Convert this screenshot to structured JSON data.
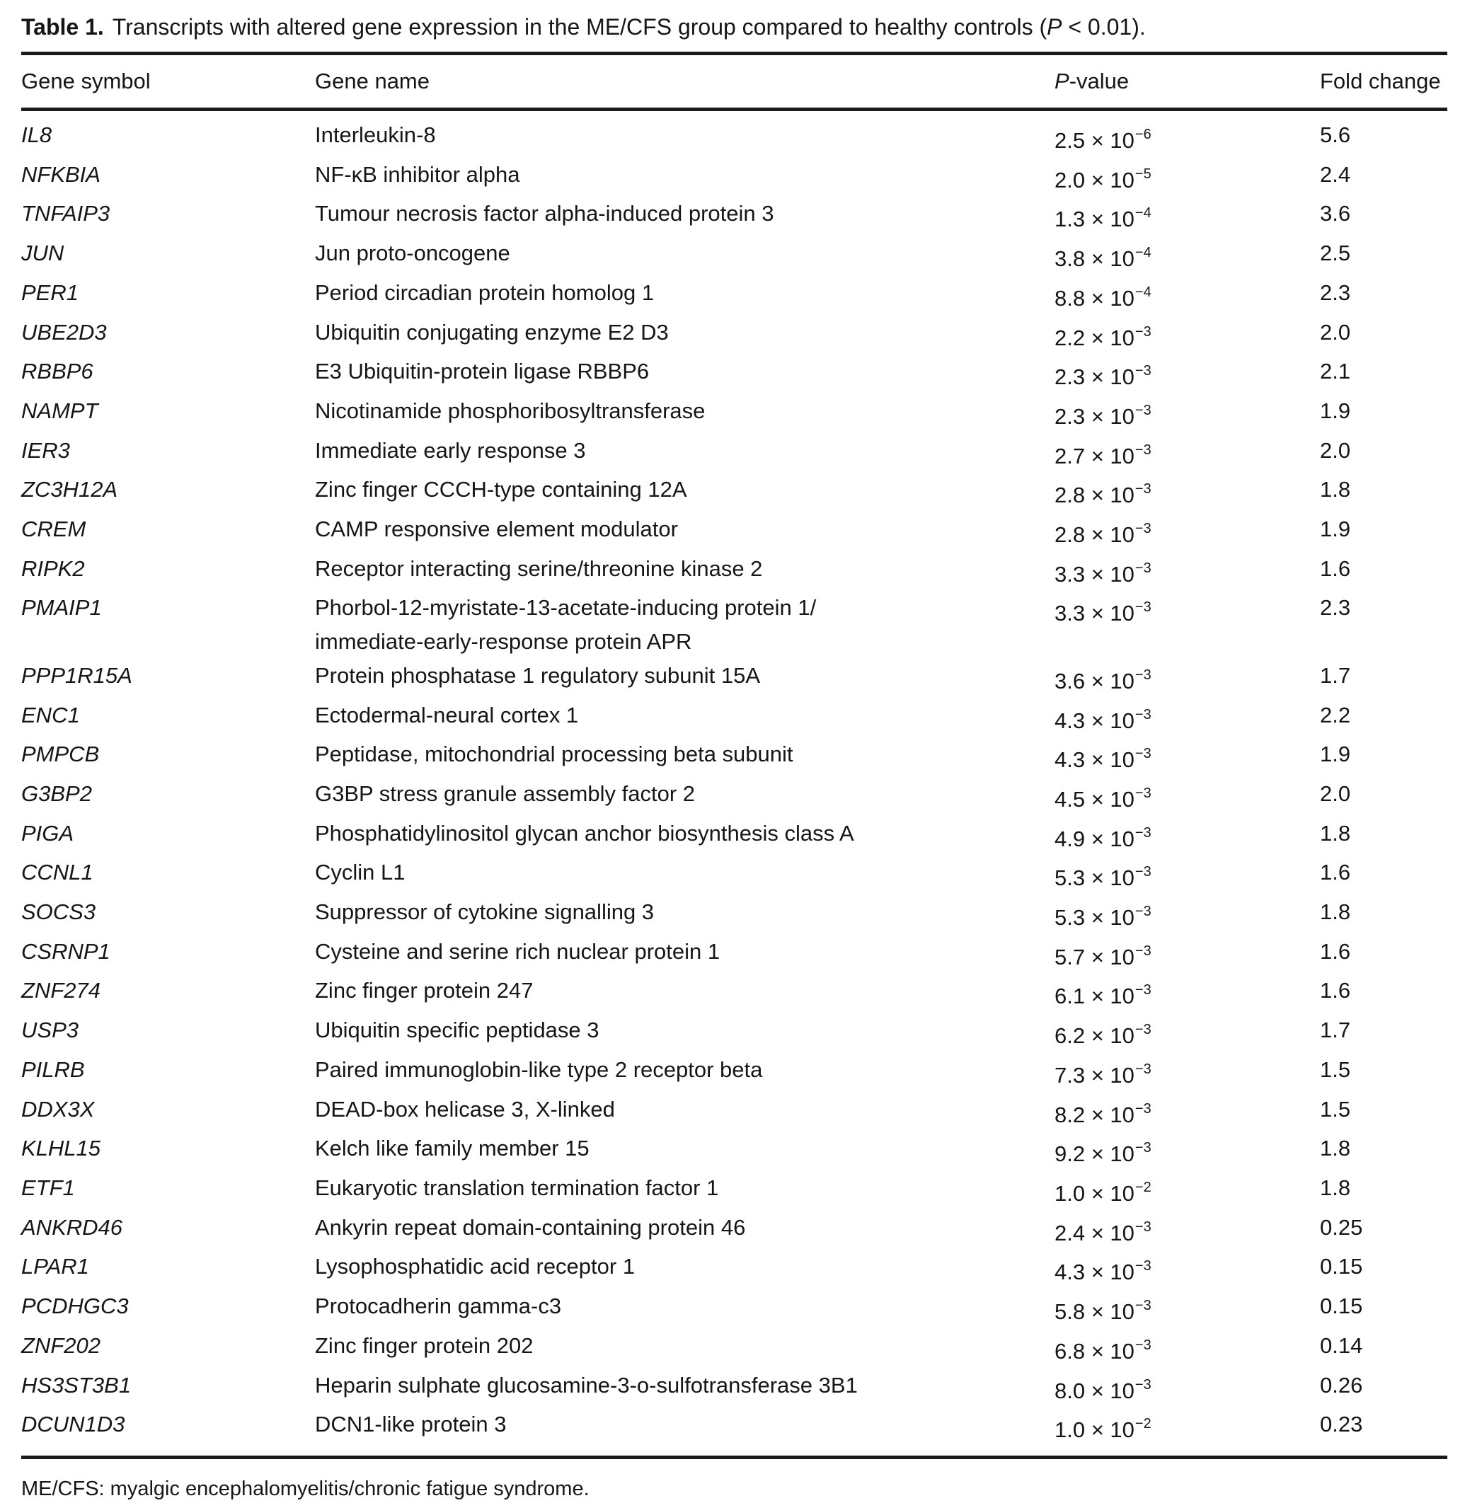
{
  "title": {
    "label": "Table 1.",
    "before": "Transcripts with altered gene expression in the ME/CFS group compared to healthy controls (",
    "p": "P",
    "after": " < 0.01)."
  },
  "header": {
    "gene_symbol": "Gene symbol",
    "gene_name": "Gene name",
    "p_value_p": "P",
    "p_value_rest": "-value",
    "fold_change": "Fold change"
  },
  "table": {
    "rows": [
      {
        "symbol": "IL8",
        "name": "Interleukin-8",
        "p_base": "2.5 × 10",
        "p_exp": "−6",
        "fold": "5.6"
      },
      {
        "symbol": "NFKBIA",
        "name": "NF-κB inhibitor alpha",
        "p_base": "2.0 × 10",
        "p_exp": "−5",
        "fold": "2.4"
      },
      {
        "symbol": "TNFAIP3",
        "name": "Tumour necrosis factor alpha-induced protein 3",
        "p_base": "1.3 × 10",
        "p_exp": "−4",
        "fold": "3.6"
      },
      {
        "symbol": "JUN",
        "name": "Jun proto-oncogene",
        "p_base": "3.8 × 10",
        "p_exp": "−4",
        "fold": "2.5"
      },
      {
        "symbol": "PER1",
        "name": "Period circadian protein homolog 1",
        "p_base": "8.8 × 10",
        "p_exp": "−4",
        "fold": "2.3"
      },
      {
        "symbol": "UBE2D3",
        "name": "Ubiquitin conjugating enzyme E2 D3",
        "p_base": "2.2 × 10",
        "p_exp": "−3",
        "fold": "2.0"
      },
      {
        "symbol": "RBBP6",
        "name": "E3 Ubiquitin-protein ligase RBBP6",
        "p_base": "2.3 × 10",
        "p_exp": "−3",
        "fold": "2.1"
      },
      {
        "symbol": "NAMPT",
        "name": "Nicotinamide phosphoribosyltransferase",
        "p_base": "2.3 × 10",
        "p_exp": "−3",
        "fold": "1.9"
      },
      {
        "symbol": "IER3",
        "name": "Immediate early response 3",
        "p_base": "2.7 × 10",
        "p_exp": "−3",
        "fold": "2.0"
      },
      {
        "symbol": "ZC3H12A",
        "name": "Zinc finger CCCH-type containing 12A",
        "p_base": "2.8 × 10",
        "p_exp": "−3",
        "fold": "1.8"
      },
      {
        "symbol": "CREM",
        "name": "CAMP responsive element modulator",
        "p_base": "2.8 × 10",
        "p_exp": "−3",
        "fold": "1.9"
      },
      {
        "symbol": "RIPK2",
        "name": "Receptor interacting serine/threonine kinase 2",
        "p_base": "3.3 × 10",
        "p_exp": "−3",
        "fold": "1.6"
      },
      {
        "symbol": "PMAIP1",
        "name": "Phorbol-12-myristate-13-acetate-inducing protein 1/",
        "name2": "immediate-early-response protein APR",
        "p_base": "3.3 × 10",
        "p_exp": "−3",
        "fold": "2.3"
      },
      {
        "symbol": "PPP1R15A",
        "name": "Protein phosphatase 1 regulatory subunit 15A",
        "p_base": "3.6 × 10",
        "p_exp": "−3",
        "fold": "1.7"
      },
      {
        "symbol": "ENC1",
        "name": "Ectodermal-neural cortex 1",
        "p_base": "4.3 × 10",
        "p_exp": "−3",
        "fold": "2.2"
      },
      {
        "symbol": "PMPCB",
        "name": "Peptidase, mitochondrial processing beta subunit",
        "p_base": "4.3 × 10",
        "p_exp": "−3",
        "fold": "1.9"
      },
      {
        "symbol": "G3BP2",
        "name": "G3BP stress granule assembly factor 2",
        "p_base": "4.5 × 10",
        "p_exp": "−3",
        "fold": "2.0"
      },
      {
        "symbol": "PIGA",
        "name": "Phosphatidylinositol glycan anchor biosynthesis class A",
        "p_base": "4.9 × 10",
        "p_exp": "−3",
        "fold": "1.8"
      },
      {
        "symbol": "CCNL1",
        "name": "Cyclin L1",
        "p_base": "5.3 × 10",
        "p_exp": "−3",
        "fold": "1.6"
      },
      {
        "symbol": "SOCS3",
        "name": "Suppressor of cytokine signalling 3",
        "p_base": "5.3 × 10",
        "p_exp": "−3",
        "fold": "1.8"
      },
      {
        "symbol": "CSRNP1",
        "name": "Cysteine and serine rich nuclear protein 1",
        "p_base": "5.7 × 10",
        "p_exp": "−3",
        "fold": "1.6"
      },
      {
        "symbol": "ZNF274",
        "name": "Zinc finger protein 247",
        "p_base": "6.1 × 10",
        "p_exp": "−3",
        "fold": "1.6"
      },
      {
        "symbol": "USP3",
        "name": "Ubiquitin specific peptidase 3",
        "p_base": "6.2 × 10",
        "p_exp": "−3",
        "fold": "1.7"
      },
      {
        "symbol": "PILRB",
        "name": "Paired immunoglobin-like type 2 receptor beta",
        "p_base": "7.3 × 10",
        "p_exp": "−3",
        "fold": "1.5"
      },
      {
        "symbol": "DDX3X",
        "name": "DEAD-box helicase 3, X-linked",
        "p_base": "8.2 × 10",
        "p_exp": "−3",
        "fold": "1.5"
      },
      {
        "symbol": "KLHL15",
        "name": "Kelch like family member 15",
        "p_base": "9.2 × 10",
        "p_exp": "−3",
        "fold": "1.8"
      },
      {
        "symbol": "ETF1",
        "name": "Eukaryotic translation termination factor 1",
        "p_base": "1.0 × 10",
        "p_exp": "−2",
        "fold": "1.8"
      },
      {
        "symbol": "ANKRD46",
        "name": "Ankyrin repeat domain-containing protein 46",
        "p_base": "2.4 × 10",
        "p_exp": "−3",
        "fold": "0.25"
      },
      {
        "symbol": "LPAR1",
        "name": "Lysophosphatidic acid receptor 1",
        "p_base": "4.3 × 10",
        "p_exp": "−3",
        "fold": "0.15"
      },
      {
        "symbol": "PCDHGC3",
        "name": "Protocadherin gamma-c3",
        "p_base": "5.8 × 10",
        "p_exp": "−3",
        "fold": "0.15"
      },
      {
        "symbol": "ZNF202",
        "name": "Zinc finger protein 202",
        "p_base": "6.8 × 10",
        "p_exp": "−3",
        "fold": "0.14"
      },
      {
        "symbol": "HS3ST3B1",
        "name": "Heparin sulphate glucosamine-3-o-sulfotransferase 3B1",
        "p_base": "8.0 × 10",
        "p_exp": "−3",
        "fold": "0.26"
      },
      {
        "symbol": "DCUN1D3",
        "name": "DCN1-like protein 3",
        "p_base": "1.0 × 10",
        "p_exp": "−2",
        "fold": "0.23"
      }
    ]
  },
  "footnote": "ME/CFS: myalgic encephalomyelitis/chronic fatigue syndrome."
}
